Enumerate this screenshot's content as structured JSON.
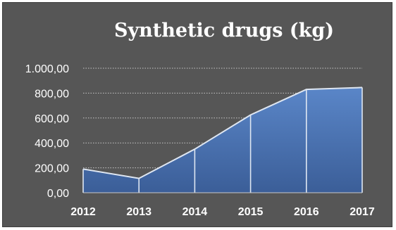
{
  "chart_data": {
    "type": "area",
    "title": "Synthetic drugs (kg)",
    "xlabel": "",
    "ylabel": "",
    "categories": [
      "2012",
      "2013",
      "2014",
      "2015",
      "2016",
      "2017"
    ],
    "series": [
      {
        "values": [
          190,
          115,
          350,
          625,
          830,
          845
        ]
      }
    ],
    "ylim": [
      0,
      1000
    ],
    "yticks": [
      0,
      200,
      400,
      600,
      800,
      1000
    ],
    "ytick_labels": [
      "0,00",
      "200,00",
      "400,00",
      "600,00",
      "800,00",
      "1.000,00"
    ],
    "grid": "dotted horizontal",
    "legend": "none",
    "colors": {
      "background": "#565656",
      "fill_top": "#5a86c8",
      "fill_bottom": "#3b5e98",
      "line": "#dfe7f2",
      "grid": "#c8c8c8",
      "text": "#ffffff"
    }
  }
}
